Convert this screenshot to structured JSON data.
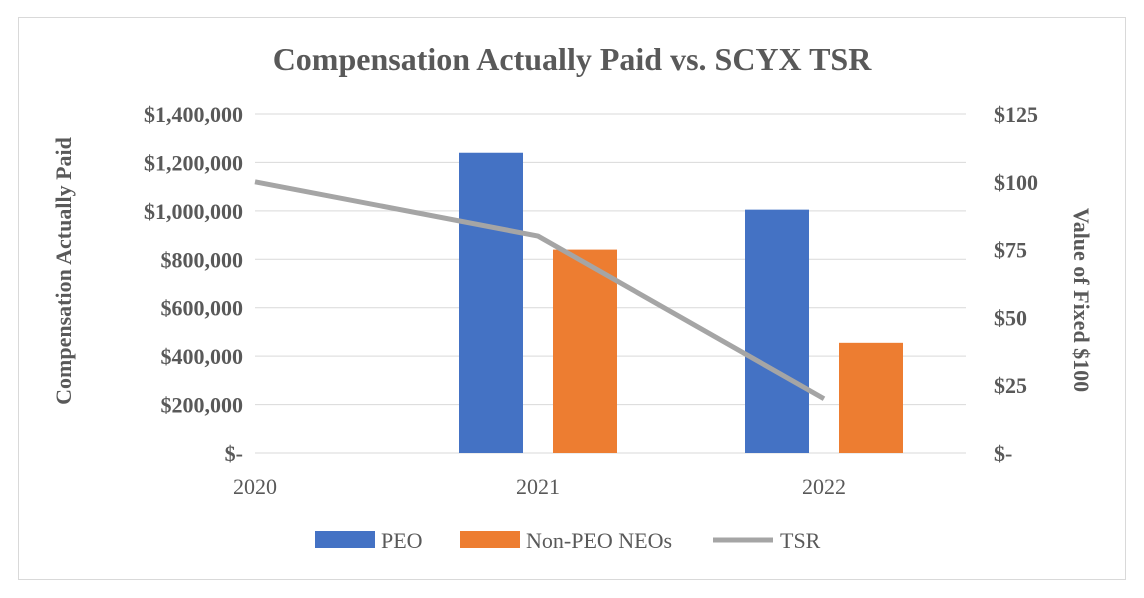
{
  "chart_data": {
    "type": "bar+line",
    "title": "Compensation Actually Paid vs. SCYX TSR",
    "categories": [
      "2020",
      "2021",
      "2022"
    ],
    "ylabel_left": "Compensation Actually Paid",
    "ylabel_right": "Value of Fixed $100",
    "ylim_left": [
      0,
      1400000
    ],
    "ylim_right": [
      0,
      125
    ],
    "left_ticks": [
      "$-",
      "$200,000",
      "$400,000",
      "$600,000",
      "$800,000",
      "$1,000,000",
      "$1,200,000",
      "$1,400,000"
    ],
    "right_ticks": [
      "$-",
      "$25",
      "$50",
      "$75",
      "$100",
      "$125"
    ],
    "series": [
      {
        "name": "PEO",
        "type": "bar",
        "axis": "left",
        "color": "#4472c4",
        "values": [
          null,
          1240000,
          1005000
        ]
      },
      {
        "name": "Non-PEO NEOs",
        "type": "bar",
        "axis": "left",
        "color": "#ed7d31",
        "values": [
          null,
          840000,
          455000
        ]
      },
      {
        "name": "TSR",
        "type": "line",
        "axis": "right",
        "color": "#a5a5a5",
        "values": [
          100,
          80,
          20
        ]
      }
    ],
    "legend_position": "bottom"
  }
}
